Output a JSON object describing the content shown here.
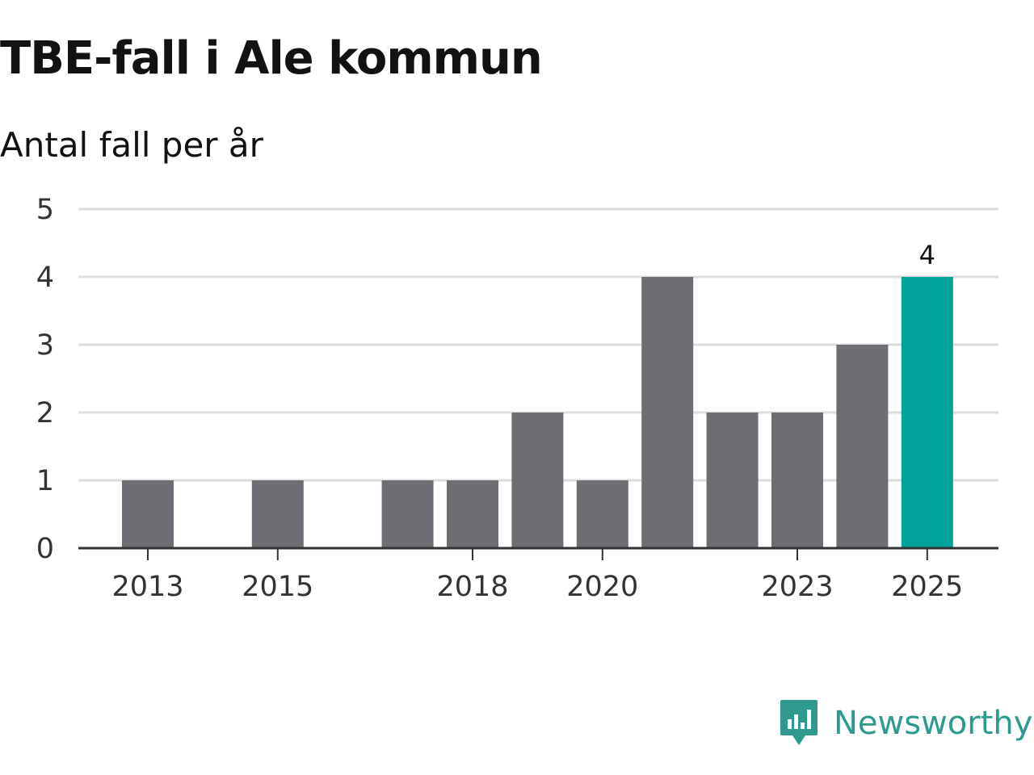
{
  "title": "TBE-fall i Ale kommun",
  "subtitle": "Antal fall per år",
  "brand": {
    "name": "Newsworthy",
    "color": "#2e9a8e",
    "icon": "newsworthy-logo-icon"
  },
  "colors": {
    "bar": "#6e6d73",
    "highlight": "#00a39a",
    "grid": "#dcdcdc",
    "axis": "#333333"
  },
  "chart_data": {
    "type": "bar",
    "title": "TBE-fall i Ale kommun",
    "subtitle": "Antal fall per år",
    "xlabel": "",
    "ylabel": "",
    "categories": [
      "2013",
      "2014",
      "2015",
      "2016",
      "2017",
      "2018",
      "2019",
      "2020",
      "2021",
      "2022",
      "2023",
      "2024",
      "2025"
    ],
    "values": [
      1,
      0,
      1,
      0,
      1,
      1,
      2,
      1,
      4,
      2,
      2,
      3,
      4
    ],
    "highlight_category": "2025",
    "value_labels": [
      {
        "category": "2025",
        "text": "4"
      }
    ],
    "x_tick_labels": [
      "2013",
      "2015",
      "2018",
      "2020",
      "2023",
      "2025"
    ],
    "y_ticks": [
      "0",
      "1",
      "2",
      "3",
      "4",
      "5"
    ],
    "ylim": [
      0,
      5
    ],
    "grid": true,
    "legend": "none"
  }
}
